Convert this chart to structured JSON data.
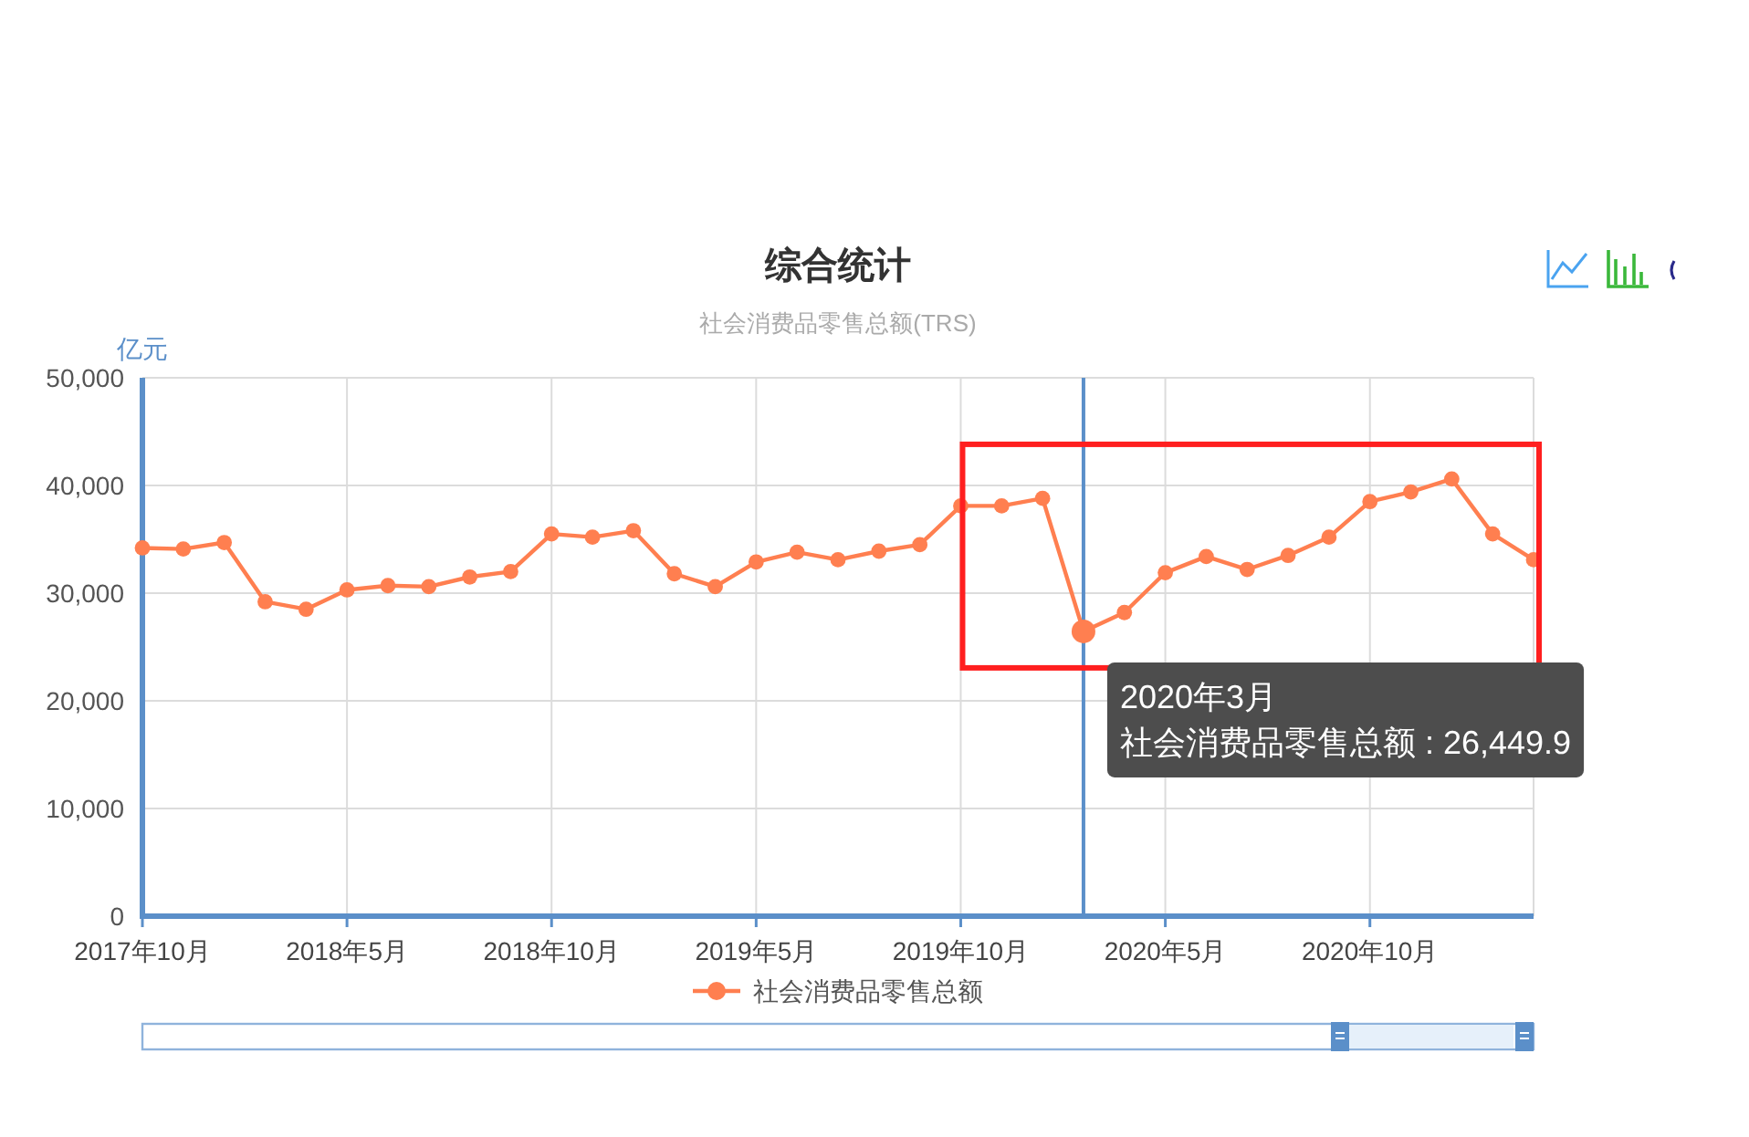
{
  "chart_data": {
    "type": "line",
    "title": "综合统计",
    "subtitle": "社会消费品零售总额(TRS)",
    "ylabel": "亿元",
    "categories": [
      "2017年10月",
      null,
      null,
      null,
      null,
      "2018年5月",
      null,
      null,
      null,
      null,
      "2018年10月",
      null,
      null,
      null,
      null,
      "2019年5月",
      null,
      null,
      null,
      null,
      "2019年10月",
      null,
      null,
      null,
      null,
      "2020年5月",
      null,
      null,
      null,
      null,
      "2020年10月",
      null,
      null,
      null,
      null
    ],
    "series": [
      {
        "name": "社会消费品零售总额",
        "color": "#ff7f50",
        "values": [
          34200,
          34100,
          34700,
          29200,
          28500,
          30300,
          30700,
          30600,
          31500,
          32000,
          35500,
          35200,
          35800,
          31800,
          30600,
          32900,
          33800,
          33100,
          33900,
          34500,
          38100,
          38100,
          38800,
          26449.9,
          28200,
          31900,
          33400,
          32200,
          33500,
          35200,
          38500,
          39400,
          40600,
          35500,
          33100
        ]
      }
    ],
    "ylim": [
      0,
      50000
    ],
    "yticks": [
      0,
      {
        "value": 10000,
        "label": "10,000"
      },
      {
        "value": 20000,
        "label": "20,000"
      },
      {
        "value": 30000,
        "label": "30,000"
      },
      {
        "value": 40000,
        "label": "40,000"
      },
      {
        "value": 50000,
        "label": "50,000"
      }
    ],
    "grid": true,
    "legend": "bottom",
    "marker": "circle",
    "line_style": "solid",
    "annotations": [
      "2020年3月",
      "社会消费品零售总额 : 26,449.9"
    ]
  }
}
